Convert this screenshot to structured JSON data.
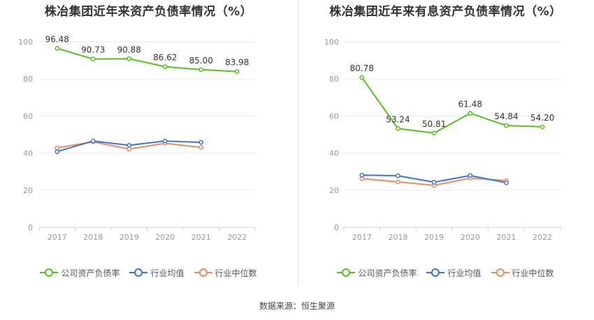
{
  "colors": {
    "company": "#52c41a",
    "industry_avg": "#3b73d9",
    "industry_median": "#f08a5d",
    "grid": "#ebebeb",
    "axis": "#cfcfcf"
  },
  "chart_data": [
    {
      "type": "line",
      "title": "株冶集团近年来资产负债率情况（%）",
      "categories": [
        "2017",
        "2018",
        "2019",
        "2020",
        "2021",
        "2022"
      ],
      "ylim": [
        0,
        100
      ],
      "yticks": [
        "0",
        "20",
        "40",
        "60",
        "80",
        "100"
      ],
      "grid": true,
      "legend_position": "bottom",
      "series": [
        {
          "name": "公司资产负债率",
          "values": [
            96.48,
            90.73,
            90.88,
            86.62,
            85.0,
            83.98
          ],
          "labels": [
            "96.48",
            "90.73",
            "90.88",
            "86.62",
            "85.00",
            "83.98"
          ]
        },
        {
          "name": "行业均值",
          "values": [
            40.8,
            46.5,
            44.2,
            46.5,
            45.8,
            null
          ]
        },
        {
          "name": "行业中位数",
          "values": [
            42.8,
            46.1,
            42.2,
            45.3,
            43.1,
            null
          ]
        }
      ]
    },
    {
      "type": "line",
      "title": "株冶集团近年来有息资产负债率情况（%）",
      "categories": [
        "2017",
        "2018",
        "2019",
        "2020",
        "2021",
        "2022"
      ],
      "ylim": [
        0,
        100
      ],
      "yticks": [
        "0",
        "20",
        "40",
        "60",
        "80",
        "100"
      ],
      "grid": true,
      "legend_position": "bottom",
      "series": [
        {
          "name": "公司资产负债率",
          "values": [
            80.78,
            53.24,
            50.81,
            61.48,
            54.84,
            54.2
          ],
          "labels": [
            "80.78",
            "53.24",
            "50.81",
            "61.48",
            "54.84",
            "54.20"
          ]
        },
        {
          "name": "行业均值",
          "values": [
            28.1,
            27.8,
            24.3,
            27.9,
            24.0,
            null
          ]
        },
        {
          "name": "行业中位数",
          "values": [
            26.2,
            24.5,
            22.6,
            26.5,
            25.2,
            null
          ]
        }
      ]
    }
  ],
  "legend": [
    {
      "label": "公司资产负债率",
      "color_key": "company"
    },
    {
      "label": "行业均值",
      "color_key": "industry_avg"
    },
    {
      "label": "行业中位数",
      "color_key": "industry_median"
    }
  ],
  "source": "数据来源：恒生聚源"
}
